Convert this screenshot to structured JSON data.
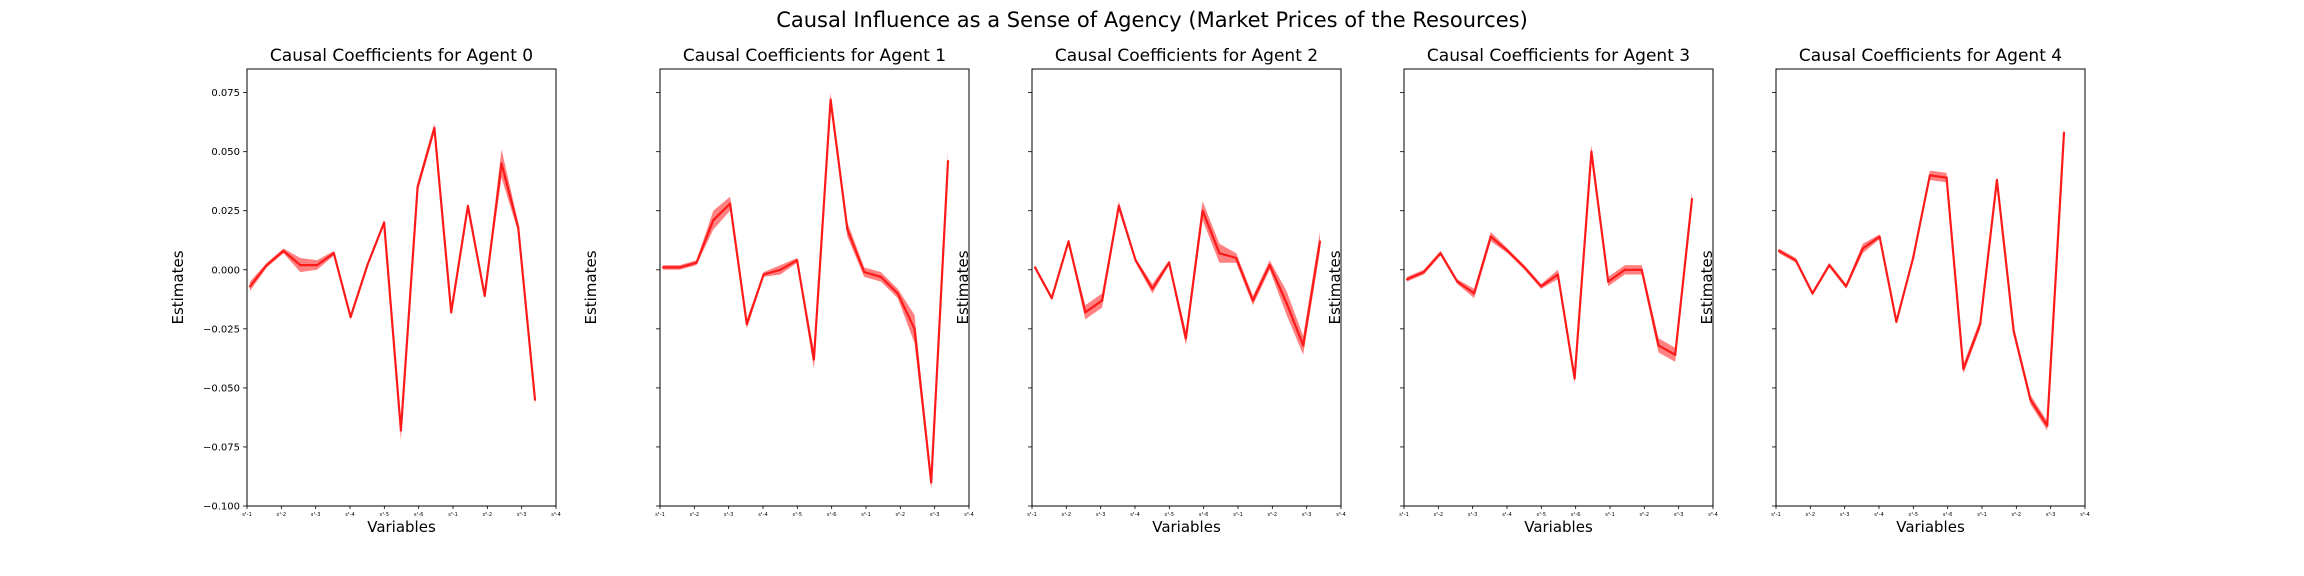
{
  "title": "Causal Influence as a Sense of Agency (Market Prices of the Resources)",
  "colors": {
    "line": "#ff1a1a",
    "band": "#ff6b6b",
    "axis": "#000000"
  },
  "chart_data": [
    {
      "type": "line",
      "title": "Causal Coefficients for Agent 0",
      "xlabel": "Variables",
      "ylabel": "Estimates",
      "ylim": [
        -0.1,
        0.085
      ],
      "yticks": [
        -0.1,
        -0.075,
        -0.05,
        -0.025,
        0.0,
        0.025,
        0.05,
        0.075
      ],
      "ytick_labels": [
        "−0.100",
        "−0.075",
        "−0.050",
        "−0.025",
        "0.000",
        "0.025",
        "0.050",
        "0.075"
      ],
      "xtick_labels": [
        "s¹-1",
        "s¹-2",
        "s¹-3",
        "s¹-4",
        "s¹-5",
        "s¹-6",
        "s⁰-1",
        "s⁰-2",
        "s⁰-3",
        "s⁰-4"
      ],
      "series": [
        {
          "values": [
            -0.007,
            0.002,
            0.008,
            0.002,
            0.002,
            0.007,
            -0.02,
            0.002,
            0.02,
            -0.068,
            0.035,
            0.06,
            -0.018,
            0.027,
            -0.011,
            0.045,
            0.018,
            -0.055
          ],
          "band": [
            0.002,
            0.001,
            0.001,
            0.003,
            0.002,
            0.001,
            0.001,
            0.001,
            0.001,
            0.004,
            0.002,
            0.002,
            0.001,
            0.001,
            0.001,
            0.006,
            0.002,
            0.002
          ]
        }
      ]
    },
    {
      "type": "line",
      "title": "Causal Coefficients for Agent 1",
      "xlabel": "",
      "ylabel": "Estimates",
      "ylim": [
        -0.1,
        0.085
      ],
      "yticks": [
        -0.1,
        -0.075,
        -0.05,
        -0.025,
        0.0,
        0.025,
        0.05,
        0.075
      ],
      "ytick_labels": [],
      "xtick_labels": [
        "s¹-1",
        "s¹-2",
        "s¹-3",
        "s¹-4",
        "s¹-5",
        "s¹-6",
        "s⁰-1",
        "s⁰-2",
        "s⁰-3",
        "s⁰-4"
      ],
      "series": [
        {
          "values": [
            0.001,
            0.001,
            0.003,
            0.021,
            0.028,
            -0.023,
            -0.002,
            0.0,
            0.004,
            -0.038,
            0.072,
            0.017,
            -0.001,
            -0.003,
            -0.01,
            -0.025,
            -0.09,
            0.046
          ],
          "band": [
            0.001,
            0.001,
            0.001,
            0.004,
            0.003,
            0.002,
            0.001,
            0.002,
            0.001,
            0.004,
            0.003,
            0.003,
            0.002,
            0.002,
            0.002,
            0.006,
            0.003,
            0.004
          ]
        }
      ]
    },
    {
      "type": "line",
      "title": "Causal Coefficients for Agent 2",
      "xlabel": "Variables",
      "ylabel": "Estimates",
      "ylim": [
        -0.1,
        0.085
      ],
      "yticks": [
        -0.1,
        -0.075,
        -0.05,
        -0.025,
        0.0,
        0.025,
        0.05,
        0.075
      ],
      "ytick_labels": [],
      "xtick_labels": [
        "s¹-1",
        "s¹-2",
        "s¹-3",
        "s¹-4",
        "s¹-5",
        "s¹-6",
        "s⁰-1",
        "s⁰-2",
        "s⁰-3",
        "s⁰-4"
      ],
      "series": [
        {
          "values": [
            0.001,
            -0.012,
            0.012,
            -0.018,
            -0.013,
            0.027,
            0.004,
            -0.008,
            0.003,
            -0.029,
            0.025,
            0.007,
            0.005,
            -0.013,
            0.002,
            -0.014,
            -0.032,
            0.012
          ],
          "band": [
            0.001,
            0.001,
            0.001,
            0.003,
            0.003,
            0.002,
            0.001,
            0.002,
            0.001,
            0.003,
            0.004,
            0.004,
            0.002,
            0.002,
            0.002,
            0.005,
            0.004,
            0.004
          ]
        }
      ]
    },
    {
      "type": "line",
      "title": "Causal Coefficients for Agent 3",
      "xlabel": "Variables",
      "ylabel": "Estimates",
      "ylim": [
        -0.1,
        0.085
      ],
      "yticks": [
        -0.1,
        -0.075,
        -0.05,
        -0.025,
        0.0,
        0.025,
        0.05,
        0.075
      ],
      "ytick_labels": [],
      "xtick_labels": [
        "s¹-1",
        "s¹-2",
        "s¹-3",
        "s¹-4",
        "s¹-5",
        "s¹-6",
        "s⁰-1",
        "s⁰-2",
        "s⁰-3",
        "s⁰-4"
      ],
      "series": [
        {
          "values": [
            -0.004,
            -0.001,
            0.007,
            -0.005,
            -0.01,
            0.014,
            0.008,
            0.001,
            -0.007,
            -0.002,
            -0.046,
            0.05,
            -0.005,
            0.0,
            0.0,
            -0.032,
            -0.036,
            0.03
          ],
          "band": [
            0.001,
            0.001,
            0.001,
            0.001,
            0.002,
            0.002,
            0.001,
            0.001,
            0.001,
            0.002,
            0.002,
            0.003,
            0.002,
            0.002,
            0.002,
            0.003,
            0.003,
            0.003
          ]
        }
      ]
    },
    {
      "type": "line",
      "title": "Causal Coefficients for Agent 4",
      "xlabel": "Variables",
      "ylabel": "Estimates",
      "ylim": [
        -0.1,
        0.085
      ],
      "yticks": [
        -0.1,
        -0.075,
        -0.05,
        -0.025,
        0.0,
        0.025,
        0.05,
        0.075
      ],
      "ytick_labels": [],
      "xtick_labels": [
        "s¹-1",
        "s¹-2",
        "s¹-3",
        "s¹-4",
        "s¹-5",
        "s¹-6",
        "s⁰-1",
        "s⁰-2",
        "s⁰-3",
        "s⁰-4"
      ],
      "series": [
        {
          "values": [
            0.008,
            0.004,
            -0.01,
            0.002,
            -0.007,
            0.009,
            0.014,
            -0.022,
            0.005,
            0.04,
            0.039,
            -0.042,
            -0.023,
            0.038,
            -0.026,
            -0.055,
            -0.066,
            0.058
          ],
          "band": [
            0.001,
            0.001,
            0.001,
            0.001,
            0.001,
            0.002,
            0.001,
            0.001,
            0.001,
            0.002,
            0.002,
            0.002,
            0.002,
            0.001,
            0.002,
            0.002,
            0.002,
            0.002
          ]
        }
      ]
    }
  ]
}
